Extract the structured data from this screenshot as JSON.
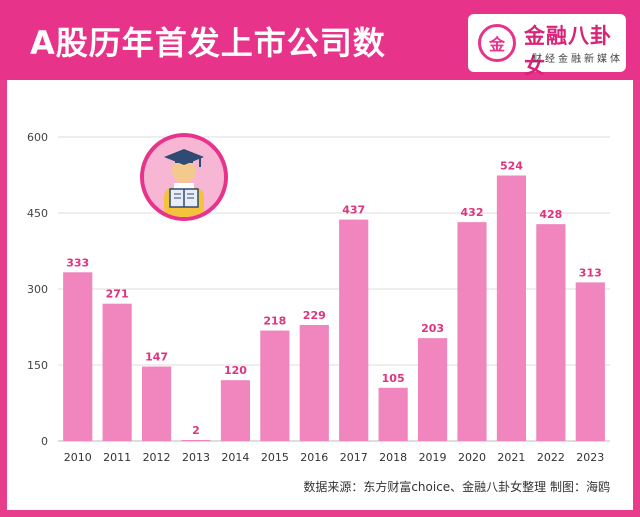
{
  "header": {
    "title": "A股历年首发上市公司数",
    "logo_mark": "金",
    "logo_name": "金融八卦女",
    "logo_sub": "财经金融新媒体"
  },
  "footer": {
    "source": "数据来源：东方财富choice、金融八卦女整理    制图：海鸥"
  },
  "colors": {
    "accent": "#e8338a",
    "bar": "#f086bd",
    "label": "#e0337f"
  },
  "mascot": {
    "icon": "graduate-reading-book-icon"
  },
  "chart_data": {
    "type": "bar",
    "categories": [
      "2010",
      "2011",
      "2012",
      "2013",
      "2014",
      "2015",
      "2016",
      "2017",
      "2018",
      "2019",
      "2020",
      "2021",
      "2022",
      "2023"
    ],
    "values": [
      333,
      271,
      147,
      2,
      120,
      218,
      229,
      437,
      105,
      203,
      432,
      524,
      428,
      313
    ],
    "yticks": [
      0,
      150,
      300,
      450,
      600
    ],
    "ylim": [
      0,
      600
    ],
    "grid": true,
    "title": "A股历年首发上市公司数",
    "xlabel": "",
    "ylabel": ""
  }
}
